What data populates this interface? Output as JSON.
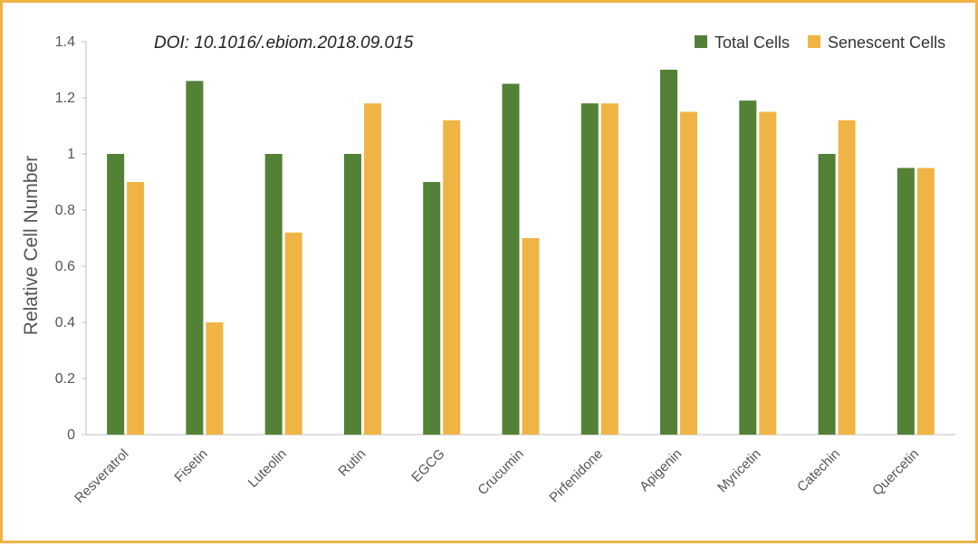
{
  "chart_data": {
    "type": "bar",
    "title": "",
    "annotation": "DOI: 10.1016/.ebiom.2018.09.015",
    "xlabel": "",
    "ylabel": "Relative Cell Number",
    "ylim": [
      0,
      1.4
    ],
    "yticks": [
      0,
      0.2,
      0.4,
      0.6,
      0.8,
      1,
      1.2,
      1.4
    ],
    "ytick_labels": [
      "0",
      "0.2",
      "0.4",
      "0.6",
      "0.8",
      "1",
      "1.2",
      "1.4"
    ],
    "grid": false,
    "legend_position": "top-right",
    "categories": [
      "Resveratrol",
      "Fisetin",
      "Luteolin",
      "Rutin",
      "EGCG",
      "Crucumin",
      "Pirfenidone",
      "Apigenin",
      "Myricetin",
      "Catechin",
      "Quercetin"
    ],
    "series": [
      {
        "name": "Total Cells",
        "color": "#538135",
        "values": [
          1.0,
          1.26,
          1.0,
          1.0,
          0.9,
          1.25,
          1.18,
          1.3,
          1.19,
          1.0,
          0.95
        ]
      },
      {
        "name": "Senescent Cells",
        "color": "#f0b445",
        "values": [
          0.9,
          0.4,
          0.72,
          1.18,
          1.12,
          0.7,
          1.18,
          1.15,
          1.15,
          1.12,
          0.95
        ]
      }
    ]
  }
}
